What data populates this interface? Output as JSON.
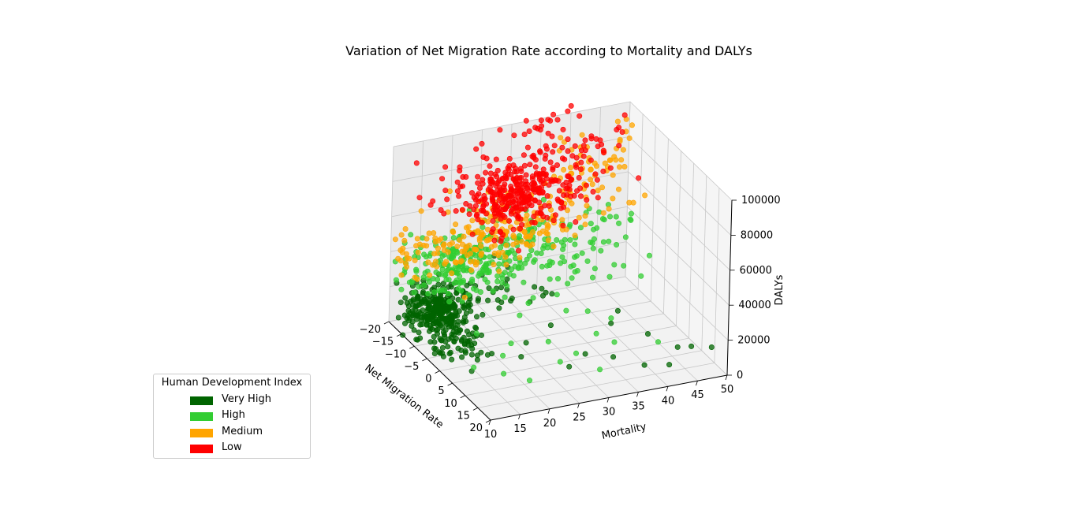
{
  "chart_data": {
    "type": "scatter",
    "title": "Variation of Net Migration Rate according to Mortality and DALYs",
    "xlabel": "Net Migration Rate",
    "ylabel": "Mortality",
    "zlabel": "DALYs",
    "xlim": [
      -20,
      20
    ],
    "ylim": [
      10,
      50
    ],
    "zlim": [
      0,
      100000
    ],
    "x_ticks": [
      "−20",
      "−15",
      "−10",
      "−5",
      "0",
      "5",
      "10",
      "15",
      "20"
    ],
    "y_ticks": [
      "10",
      "15",
      "20",
      "25",
      "30",
      "35",
      "40",
      "45",
      "50"
    ],
    "z_ticks": [
      "0",
      "20000",
      "40000",
      "60000",
      "80000",
      "100000"
    ],
    "legend_title": "Human Development Index",
    "legend_position": "lower-left",
    "grid": true,
    "series": [
      {
        "name": "Very High",
        "color": "#006400",
        "clusters": [
          {
            "x": -13,
            "y": 15,
            "z": 14000,
            "sx": 2.5,
            "sy": 2.5,
            "sz": 5000,
            "n": 260
          },
          {
            "x": -5,
            "y": 14,
            "z": 11000,
            "sx": 5,
            "sy": 2,
            "sz": 4000,
            "n": 90
          },
          {
            "x": -14,
            "y": 24,
            "z": 15000,
            "sx": 3,
            "sy": 6,
            "sz": 6000,
            "n": 40
          }
        ],
        "outliers": [
          [
            12,
            45,
            8000
          ],
          [
            15,
            46,
            12000
          ],
          [
            16,
            49,
            11000
          ],
          [
            5,
            43,
            7000
          ],
          [
            2,
            38,
            12000
          ],
          [
            18,
            41,
            9000
          ],
          [
            10,
            35,
            6000
          ],
          [
            -3,
            30,
            9000
          ],
          [
            6,
            32,
            4000
          ],
          [
            13,
            39,
            3000
          ],
          [
            9,
            28,
            3500
          ],
          [
            -1,
            25,
            5000
          ],
          [
            4,
            22,
            6000
          ],
          [
            0,
            40,
            15000
          ]
        ]
      },
      {
        "name": "High",
        "color": "#32cd32",
        "clusters": [
          {
            "x": -15,
            "y": 20,
            "z": 32000,
            "sx": 3,
            "sy": 5,
            "sz": 8000,
            "n": 200
          },
          {
            "x": -12,
            "y": 33,
            "z": 38000,
            "sx": 4,
            "sy": 7,
            "sz": 10000,
            "n": 130
          }
        ],
        "outliers": [
          [
            0,
            22,
            8000
          ],
          [
            3,
            27,
            10000
          ],
          [
            -4,
            33,
            14000
          ],
          [
            2,
            38,
            15000
          ],
          [
            -8,
            42,
            22000
          ],
          [
            -5,
            46,
            24000
          ],
          [
            7,
            30,
            7000
          ],
          [
            10,
            26,
            9000
          ],
          [
            12,
            20,
            5000
          ],
          [
            6,
            18,
            12000
          ],
          [
            -2,
            17,
            14000
          ],
          [
            4,
            14,
            5000
          ],
          [
            1,
            36,
            6000
          ],
          [
            -10,
            40,
            20000
          ],
          [
            9,
            43,
            8000
          ],
          [
            -14,
            48,
            42000
          ],
          [
            -12,
            47,
            46000
          ],
          [
            -16,
            45,
            50000
          ],
          [
            -13,
            44,
            48000
          ],
          [
            8,
            36,
            11000
          ],
          [
            -6,
            26,
            13000
          ],
          [
            14,
            31,
            7000
          ],
          [
            11,
            16,
            10000
          ]
        ]
      },
      {
        "name": "Medium",
        "color": "#ffa500",
        "clusters": [
          {
            "x": -16,
            "y": 28,
            "z": 48000,
            "sx": 3,
            "sy": 8,
            "sz": 8000,
            "n": 160
          },
          {
            "x": -15,
            "y": 17,
            "z": 42000,
            "sx": 3,
            "sy": 5,
            "sz": 6000,
            "n": 60
          },
          {
            "x": -19,
            "y": 44,
            "z": 68000,
            "sx": 1.5,
            "sy": 3,
            "sz": 9000,
            "n": 40
          }
        ],
        "outliers": [
          [
            -19,
            49,
            85000
          ],
          [
            -19,
            48,
            80000
          ],
          [
            -18,
            47,
            78000
          ],
          [
            -19,
            50,
            88000
          ],
          [
            -19,
            49,
            92000
          ],
          [
            -18,
            46,
            72000
          ],
          [
            -17,
            45,
            68000
          ],
          [
            -20,
            48,
            90000
          ],
          [
            -12,
            16,
            70000
          ],
          [
            -16,
            18,
            75000
          ],
          [
            -20,
            15,
            60000
          ],
          [
            -19,
            16,
            48000
          ],
          [
            -18,
            20,
            52000
          ],
          [
            -20,
            22,
            56000
          ],
          [
            -17,
            37,
            92000
          ],
          [
            -15,
            36,
            88000
          ],
          [
            -16,
            40,
            86000
          ],
          [
            -18,
            42,
            82000
          ],
          [
            -20,
            39,
            84000
          ]
        ]
      },
      {
        "name": "Low",
        "color": "#ff0000",
        "clusters": [
          {
            "x": -16,
            "y": 29,
            "z": 66000,
            "sx": 2.5,
            "sy": 5,
            "sz": 9000,
            "n": 320
          },
          {
            "x": -17,
            "y": 38,
            "z": 82000,
            "sx": 2,
            "sy": 5,
            "sz": 12000,
            "n": 70
          }
        ],
        "outliers": [
          [
            -20,
            28,
            98000
          ],
          [
            -19,
            32,
            102000
          ],
          [
            -20,
            37,
            101000
          ],
          [
            -19,
            39,
            103000
          ],
          [
            -20,
            35,
            99000
          ],
          [
            -18,
            34,
            97000
          ],
          [
            -19,
            30,
            95000
          ],
          [
            -20,
            25,
            92000
          ],
          [
            -20,
            14,
            88000
          ],
          [
            -18,
            18,
            86000
          ],
          [
            -17,
            20,
            84000
          ],
          [
            -14,
            12,
            78000
          ],
          [
            -20,
            47,
            64000
          ],
          [
            -16,
            50,
            62000
          ],
          [
            -19,
            26,
            80000
          ],
          [
            -20,
            33,
            94000
          ],
          [
            -18,
            36,
            92000
          ],
          [
            -19,
            41,
            99000
          ],
          [
            -20,
            40,
            104000
          ],
          [
            -17,
            24,
            74000
          ]
        ]
      }
    ]
  }
}
